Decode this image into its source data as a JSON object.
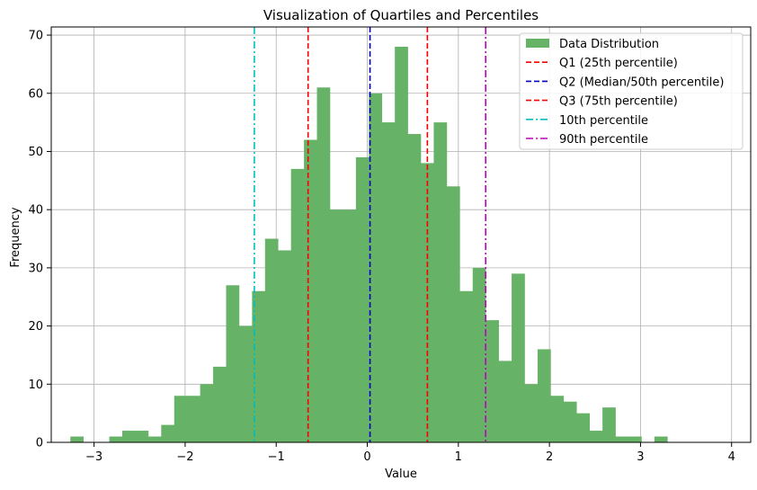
{
  "chart_data": {
    "type": "bar",
    "title": "Visualization of Quartiles and Percentiles",
    "xlabel": "Value",
    "ylabel": "Frequency",
    "xlim": [
      -3.47,
      4.21
    ],
    "ylim": [
      0,
      71.4
    ],
    "grid": true,
    "legend_position": "top-right",
    "x_ticks": [
      -3,
      -2,
      -1,
      0,
      1,
      2,
      3,
      4
    ],
    "y_ticks": [
      0,
      10,
      20,
      30,
      40,
      50,
      60,
      70
    ],
    "histogram": {
      "name": "Data Distribution",
      "color": "#66b266",
      "bin_start": -3.26,
      "bin_width": 0.1425,
      "counts": [
        1,
        0,
        0,
        1,
        2,
        2,
        1,
        3,
        8,
        8,
        10,
        13,
        27,
        20,
        26,
        35,
        33,
        47,
        52,
        61,
        40,
        40,
        49,
        60,
        55,
        68,
        53,
        48,
        55,
        44,
        26,
        30,
        21,
        14,
        29,
        10,
        16,
        8,
        7,
        5,
        2,
        6,
        1,
        1,
        0,
        1,
        0,
        0,
        0,
        0
      ]
    },
    "lines": [
      {
        "name": "Q1 (25th percentile)",
        "x": -0.65,
        "color": "#ff0000",
        "style": "dashed"
      },
      {
        "name": "Q2 (Median/50th percentile)",
        "x": 0.03,
        "color": "#0000cc",
        "style": "dashed"
      },
      {
        "name": "Q3 (75th percentile)",
        "x": 0.66,
        "color": "#ff0000",
        "style": "dashed"
      },
      {
        "name": "10th percentile",
        "x": -1.24,
        "color": "#00bfbf",
        "style": "dashdot"
      },
      {
        "name": "90th percentile",
        "x": 1.3,
        "color": "#bf00bf",
        "style": "dashdot"
      }
    ]
  }
}
